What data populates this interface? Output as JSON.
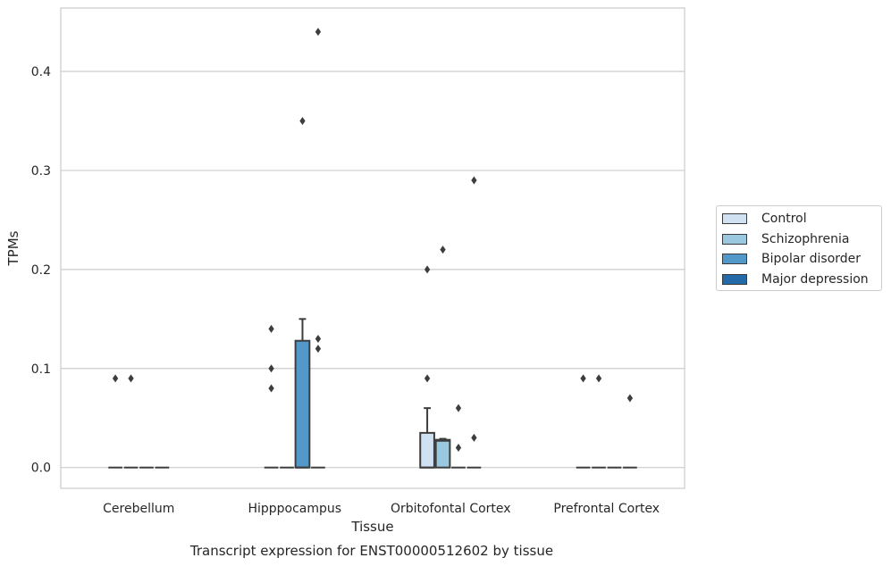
{
  "chart_data": {
    "type": "box",
    "title": "Transcript expression for ENST00000512602 by tissue",
    "xlabel": "Tissue",
    "ylabel": "TPMs",
    "ylim": [
      -0.021,
      0.464
    ],
    "yticks": [
      0.0,
      0.1,
      0.2,
      0.3,
      0.4
    ],
    "ytick_labels": [
      "0.0",
      "0.1",
      "0.2",
      "0.3",
      "0.4"
    ],
    "grid": "horizontal",
    "legend_position": "right",
    "categories": [
      "Cerebellum",
      "Hipppocampus",
      "Orbitofontal Cortex",
      "Prefrontal Cortex"
    ],
    "series": [
      {
        "name": "Control",
        "color": "#d0e1f2",
        "boxes": [
          {
            "q1": 0,
            "median": 0,
            "q3": 0,
            "whisker_low": 0,
            "whisker_high": 0,
            "outliers": [
              0.09
            ]
          },
          {
            "q1": 0,
            "median": 0,
            "q3": 0,
            "whisker_low": 0,
            "whisker_high": 0,
            "outliers": [
              0.14,
              0.1,
              0.08
            ]
          },
          {
            "q1": 0,
            "median": 0,
            "q3": 0.035,
            "whisker_low": 0,
            "whisker_high": 0.06,
            "outliers": [
              0.2,
              0.09
            ]
          },
          {
            "q1": 0,
            "median": 0,
            "q3": 0,
            "whisker_low": 0,
            "whisker_high": 0,
            "outliers": [
              0.09
            ]
          }
        ]
      },
      {
        "name": "Schizophrenia",
        "color": "#9ac8e0",
        "boxes": [
          {
            "q1": 0,
            "median": 0,
            "q3": 0,
            "whisker_low": 0,
            "whisker_high": 0,
            "outliers": [
              0.09
            ]
          },
          {
            "q1": 0,
            "median": 0,
            "q3": 0,
            "whisker_low": 0,
            "whisker_high": 0,
            "outliers": []
          },
          {
            "q1": 0,
            "median": 0.027,
            "q3": 0.028,
            "whisker_low": 0,
            "whisker_high": 0.029,
            "outliers": [
              0.22
            ]
          },
          {
            "q1": 0,
            "median": 0,
            "q3": 0,
            "whisker_low": 0,
            "whisker_high": 0,
            "outliers": [
              0.09
            ]
          }
        ]
      },
      {
        "name": "Bipolar disorder",
        "color": "#5298c9",
        "boxes": [
          {
            "q1": 0,
            "median": 0,
            "q3": 0,
            "whisker_low": 0,
            "whisker_high": 0,
            "outliers": []
          },
          {
            "q1": 0,
            "median": 0,
            "q3": 0.128,
            "whisker_low": 0,
            "whisker_high": 0.15,
            "outliers": [
              0.35
            ]
          },
          {
            "q1": 0,
            "median": 0,
            "q3": 0,
            "whisker_low": 0,
            "whisker_high": 0,
            "outliers": [
              0.06,
              0.02
            ]
          },
          {
            "q1": 0,
            "median": 0,
            "q3": 0,
            "whisker_low": 0,
            "whisker_high": 0,
            "outliers": []
          }
        ]
      },
      {
        "name": "Major depression",
        "color": "#2469a8",
        "boxes": [
          {
            "q1": 0,
            "median": 0,
            "q3": 0,
            "whisker_low": 0,
            "whisker_high": 0,
            "outliers": []
          },
          {
            "q1": 0,
            "median": 0,
            "q3": 0,
            "whisker_low": 0,
            "whisker_high": 0,
            "outliers": [
              0.44,
              0.13,
              0.12
            ]
          },
          {
            "q1": 0,
            "median": 0,
            "q3": 0,
            "whisker_low": 0,
            "whisker_high": 0,
            "outliers": [
              0.29,
              0.03
            ]
          },
          {
            "q1": 0,
            "median": 0,
            "q3": 0,
            "whisker_low": 0,
            "whisker_high": 0,
            "outliers": [
              0.07
            ]
          }
        ]
      }
    ]
  }
}
